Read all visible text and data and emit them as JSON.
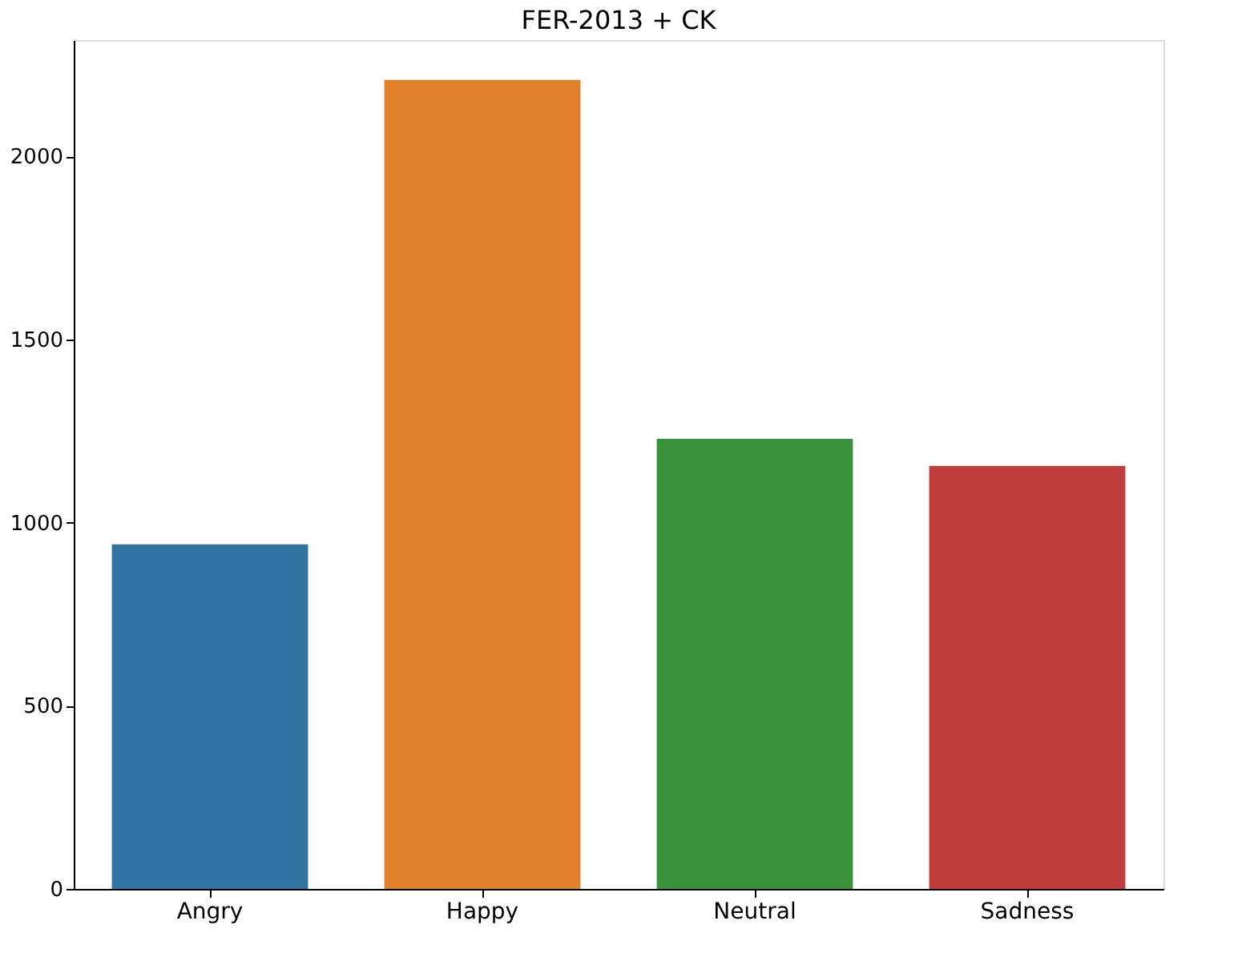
{
  "chart_data": {
    "type": "bar",
    "title": "FER-2013 + CK",
    "categories": [
      "Angry",
      "Happy",
      "Neutral",
      "Sadness"
    ],
    "values": [
      941,
      2209,
      1229,
      1155
    ],
    "colors": [
      "#3274a1",
      "#e1812c",
      "#3a923a",
      "#c03d3e"
    ],
    "ylim": [
      0,
      2318
    ],
    "yticks": [
      0,
      500,
      1000,
      1500,
      2000
    ],
    "grid": false
  }
}
